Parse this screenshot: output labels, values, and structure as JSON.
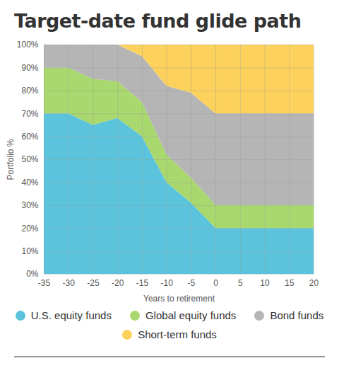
{
  "chart_data": {
    "type": "area",
    "title": "Target-date fund glide path",
    "x_label": "Years to retirement",
    "y_label": "Portfolio %",
    "x": [
      -35,
      -30,
      -25,
      -20,
      -15,
      -10,
      -5,
      0,
      5,
      10,
      15,
      20
    ],
    "series": [
      {
        "name": "U.S. equity funds",
        "color": "#5bc4dc",
        "values": [
          70,
          70,
          65,
          68,
          60,
          40,
          31,
          20,
          20,
          20,
          20,
          20
        ]
      },
      {
        "name": "Global equity funds",
        "color": "#a8d86e",
        "values": [
          20,
          20,
          20,
          16,
          15,
          12,
          11,
          10,
          10,
          10,
          10,
          10
        ]
      },
      {
        "name": "Bond funds",
        "color": "#b5b5b5",
        "values": [
          10,
          10,
          15,
          16,
          20,
          30,
          37,
          40,
          40,
          40,
          40,
          40
        ]
      },
      {
        "name": "Short-term funds",
        "color": "#fdd25c",
        "values": [
          0,
          0,
          0,
          0,
          5,
          18,
          21,
          30,
          30,
          30,
          30,
          30
        ]
      }
    ],
    "stacked": true,
    "xlim": [
      -35,
      20
    ],
    "ylim": [
      0,
      100
    ],
    "xticks": [
      -35,
      -30,
      -25,
      -20,
      -15,
      -10,
      -5,
      0,
      5,
      10,
      15,
      20
    ],
    "yticks": [
      {
        "value": 0,
        "label": "0%"
      },
      {
        "value": 10,
        "label": "10%"
      },
      {
        "value": 20,
        "label": "20%"
      },
      {
        "value": 30,
        "label": "30%"
      },
      {
        "value": 40,
        "label": "40%"
      },
      {
        "value": 50,
        "label": "50%"
      },
      {
        "value": 60,
        "label": "60%"
      },
      {
        "value": 70,
        "label": "70%"
      },
      {
        "value": 80,
        "label": "80%"
      },
      {
        "value": 90,
        "label": "90%"
      },
      {
        "value": 100,
        "label": "100%"
      }
    ],
    "grid": true,
    "legend": "bottom"
  }
}
